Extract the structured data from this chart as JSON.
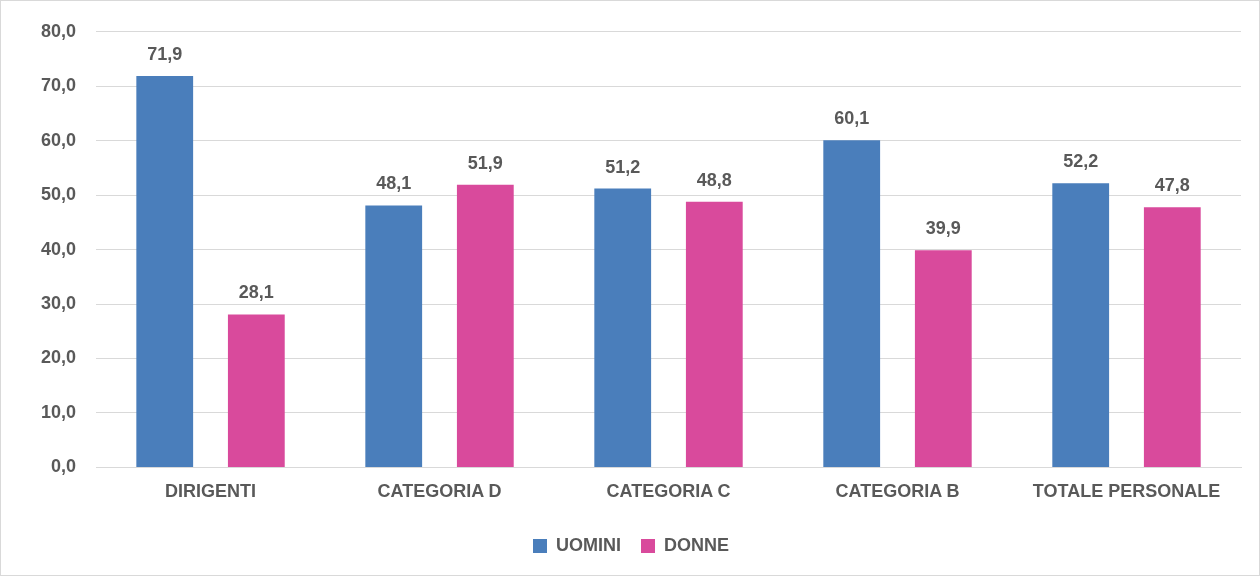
{
  "chart_data": {
    "type": "bar",
    "categories": [
      "DIRIGENTI",
      "CATEGORIA D",
      "CATEGORIA C",
      "CATEGORIA B",
      "TOTALE PERSONALE"
    ],
    "series": [
      {
        "name": "UOMINI",
        "color": "#4a7ebb",
        "values": [
          71.9,
          48.1,
          51.2,
          60.1,
          52.2
        ],
        "value_labels": [
          "71,9",
          "48,1",
          "51,2",
          "60,1",
          "52,2"
        ]
      },
      {
        "name": "DONNE",
        "color": "#d94a9c",
        "values": [
          28.1,
          51.9,
          48.8,
          39.9,
          47.8
        ],
        "value_labels": [
          "28,1",
          "51,9",
          "48,8",
          "39,9",
          "47,8"
        ]
      }
    ],
    "ylim": [
      0,
      80
    ],
    "yticks": [
      {
        "value": 0,
        "label": "0,0"
      },
      {
        "value": 10,
        "label": "10,0"
      },
      {
        "value": 20,
        "label": "20,0"
      },
      {
        "value": 30,
        "label": "30,0"
      },
      {
        "value": 40,
        "label": "40,0"
      },
      {
        "value": 50,
        "label": "50,0"
      },
      {
        "value": 60,
        "label": "60,0"
      },
      {
        "value": 70,
        "label": "70,0"
      },
      {
        "value": 80,
        "label": "80,0"
      }
    ],
    "grid": "y",
    "legend": "bottom"
  }
}
